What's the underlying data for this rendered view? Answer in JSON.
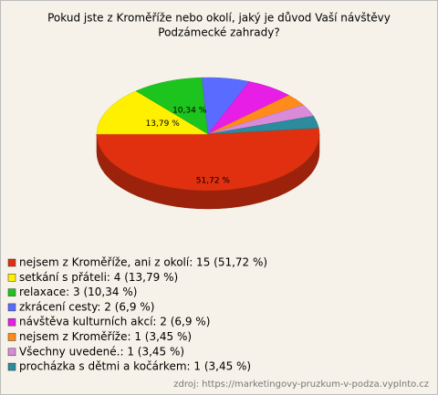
{
  "chart_data": {
    "type": "pie3d",
    "title": [
      "Pokud jste z Kroměříže nebo okolí, jaký je důvod Vaší návštěvy",
      "Podzámecké zahrady?"
    ],
    "categories": [
      "nejsem z Kroměříže, ani z okolí: 15 (51,72 %)",
      "setkání s přáteli: 4 (13,79 %)",
      "relaxace: 3 (10,34 %)",
      "zkrácení cesty: 2 (6,9 %)",
      "návštěva kulturních akcí: 2 (6,9 %)",
      "nejsem z Kroměříže: 1 (3,45 %)",
      "Všechny uvedené.: 1 (3,45 %)",
      "procházka s dětmi a kočárkem: 1 (3,45 %)"
    ],
    "values": [
      51.72,
      13.79,
      10.34,
      6.9,
      6.9,
      3.45,
      3.45,
      3.45
    ],
    "value_labels": [
      "51,72 %",
      "13,79 %",
      "10,34 %",
      null,
      null,
      null,
      null,
      null
    ],
    "colors": [
      "#e0300f",
      "#fff000",
      "#1ec41e",
      "#5a6cff",
      "#e61ee6",
      "#ff8c1a",
      "#d98ad9",
      "#2a8c9c"
    ],
    "legend": "bottom-left",
    "source": "zdroj: https://marketingovy-pruzkum-v-podza.vyplnto.cz"
  }
}
